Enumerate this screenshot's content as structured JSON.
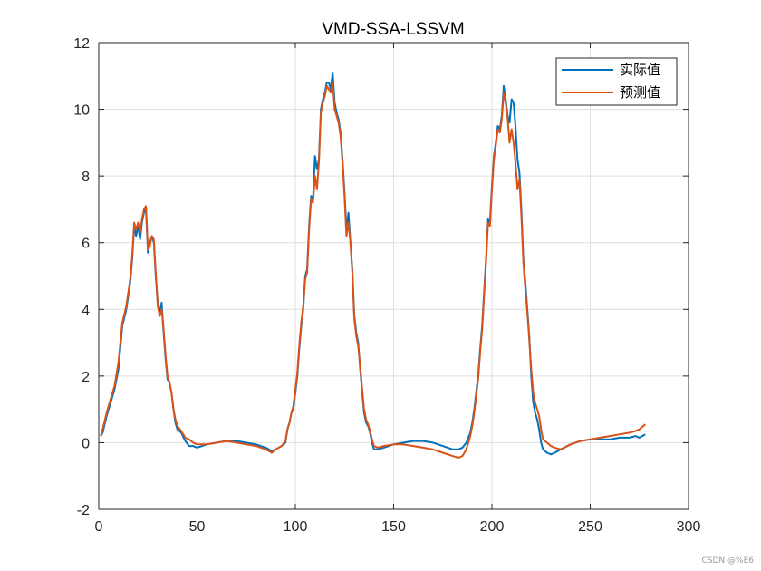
{
  "chart_data": {
    "type": "line",
    "title": "VMD-SSA-LSSVM",
    "xlabel": "",
    "ylabel": "",
    "xlim": [
      0,
      300
    ],
    "ylim": [
      -2,
      12
    ],
    "x_ticks": [
      0,
      50,
      100,
      150,
      200,
      250,
      300
    ],
    "y_ticks": [
      -2,
      0,
      2,
      4,
      6,
      8,
      10,
      12
    ],
    "grid": true,
    "legend_position": "top-right",
    "series": [
      {
        "name": "实际值",
        "color": "#0072BD",
        "points": [
          [
            1,
            0.2
          ],
          [
            2,
            0.3
          ],
          [
            4,
            0.8
          ],
          [
            6,
            1.2
          ],
          [
            8,
            1.6
          ],
          [
            10,
            2.2
          ],
          [
            12,
            3.5
          ],
          [
            14,
            4.0
          ],
          [
            16,
            4.8
          ],
          [
            17,
            5.5
          ],
          [
            18,
            6.5
          ],
          [
            19,
            6.2
          ],
          [
            20,
            6.5
          ],
          [
            21,
            6.1
          ],
          [
            22,
            6.6
          ],
          [
            23,
            6.9
          ],
          [
            24,
            7.0
          ],
          [
            25,
            5.7
          ],
          [
            26,
            6.0
          ],
          [
            27,
            6.2
          ],
          [
            28,
            6.0
          ],
          [
            29,
            5.0
          ],
          [
            30,
            4.2
          ],
          [
            31,
            3.9
          ],
          [
            32,
            4.2
          ],
          [
            33,
            3.3
          ],
          [
            34,
            2.5
          ],
          [
            35,
            1.9
          ],
          [
            36,
            1.8
          ],
          [
            37,
            1.5
          ],
          [
            38,
            1.0
          ],
          [
            39,
            0.6
          ],
          [
            40,
            0.4
          ],
          [
            42,
            0.3
          ],
          [
            44,
            0.05
          ],
          [
            46,
            -0.1
          ],
          [
            48,
            -0.1
          ],
          [
            50,
            -0.15
          ],
          [
            55,
            -0.05
          ],
          [
            60,
            0.0
          ],
          [
            65,
            0.05
          ],
          [
            70,
            0.05
          ],
          [
            75,
            0.0
          ],
          [
            80,
            -0.05
          ],
          [
            85,
            -0.15
          ],
          [
            88,
            -0.25
          ],
          [
            90,
            -0.2
          ],
          [
            93,
            -0.1
          ],
          [
            95,
            0.0
          ],
          [
            96,
            0.4
          ],
          [
            97,
            0.6
          ],
          [
            98,
            0.9
          ],
          [
            99,
            1.0
          ],
          [
            100,
            1.5
          ],
          [
            101,
            2.0
          ],
          [
            102,
            2.8
          ],
          [
            103,
            3.5
          ],
          [
            104,
            4.0
          ],
          [
            105,
            5.0
          ],
          [
            106,
            5.2
          ],
          [
            107,
            6.5
          ],
          [
            108,
            7.4
          ],
          [
            109,
            7.3
          ],
          [
            110,
            8.6
          ],
          [
            111,
            8.2
          ],
          [
            112,
            8.5
          ],
          [
            113,
            10.0
          ],
          [
            114,
            10.3
          ],
          [
            115,
            10.5
          ],
          [
            116,
            10.8
          ],
          [
            117,
            10.8
          ],
          [
            118,
            10.6
          ],
          [
            119,
            11.1
          ],
          [
            120,
            10.2
          ],
          [
            121,
            9.9
          ],
          [
            122,
            9.7
          ],
          [
            123,
            9.3
          ],
          [
            124,
            8.5
          ],
          [
            125,
            7.5
          ],
          [
            126,
            6.4
          ],
          [
            127,
            6.9
          ],
          [
            128,
            6.0
          ],
          [
            129,
            5.2
          ],
          [
            130,
            3.8
          ],
          [
            131,
            3.3
          ],
          [
            132,
            3.0
          ],
          [
            133,
            2.2
          ],
          [
            134,
            1.5
          ],
          [
            135,
            0.9
          ],
          [
            136,
            0.6
          ],
          [
            137,
            0.5
          ],
          [
            138,
            0.3
          ],
          [
            139,
            0.0
          ],
          [
            140,
            -0.2
          ],
          [
            142,
            -0.2
          ],
          [
            145,
            -0.15
          ],
          [
            150,
            -0.05
          ],
          [
            155,
            0.0
          ],
          [
            160,
            0.05
          ],
          [
            165,
            0.05
          ],
          [
            170,
            0.0
          ],
          [
            175,
            -0.1
          ],
          [
            180,
            -0.2
          ],
          [
            183,
            -0.2
          ],
          [
            185,
            -0.15
          ],
          [
            187,
            0.0
          ],
          [
            189,
            0.3
          ],
          [
            190,
            0.6
          ],
          [
            191,
            1.0
          ],
          [
            192,
            1.5
          ],
          [
            193,
            2.0
          ],
          [
            194,
            2.8
          ],
          [
            195,
            3.5
          ],
          [
            196,
            4.5
          ],
          [
            197,
            5.5
          ],
          [
            198,
            6.7
          ],
          [
            199,
            6.6
          ],
          [
            200,
            7.7
          ],
          [
            201,
            8.6
          ],
          [
            202,
            9.0
          ],
          [
            203,
            9.5
          ],
          [
            204,
            9.4
          ],
          [
            205,
            9.8
          ],
          [
            206,
            10.7
          ],
          [
            207,
            10.3
          ],
          [
            208,
            9.8
          ],
          [
            209,
            9.6
          ],
          [
            210,
            10.3
          ],
          [
            211,
            10.2
          ],
          [
            212,
            9.5
          ],
          [
            213,
            8.5
          ],
          [
            214,
            8.1
          ],
          [
            215,
            7.0
          ],
          [
            216,
            5.5
          ],
          [
            217,
            4.8
          ],
          [
            218,
            4.0
          ],
          [
            219,
            3.2
          ],
          [
            220,
            2.0
          ],
          [
            221,
            1.2
          ],
          [
            222,
            0.9
          ],
          [
            223,
            0.7
          ],
          [
            224,
            0.4
          ],
          [
            225,
            0.0
          ],
          [
            226,
            -0.2
          ],
          [
            228,
            -0.3
          ],
          [
            230,
            -0.35
          ],
          [
            232,
            -0.3
          ],
          [
            235,
            -0.2
          ],
          [
            240,
            -0.05
          ],
          [
            245,
            0.05
          ],
          [
            250,
            0.1
          ],
          [
            255,
            0.1
          ],
          [
            260,
            0.1
          ],
          [
            265,
            0.15
          ],
          [
            270,
            0.15
          ],
          [
            273,
            0.2
          ],
          [
            275,
            0.15
          ],
          [
            278,
            0.25
          ]
        ]
      },
      {
        "name": "预测值",
        "color": "#D95319",
        "points": [
          [
            1,
            0.2
          ],
          [
            2,
            0.4
          ],
          [
            4,
            0.9
          ],
          [
            6,
            1.3
          ],
          [
            8,
            1.7
          ],
          [
            10,
            2.4
          ],
          [
            12,
            3.6
          ],
          [
            14,
            4.1
          ],
          [
            16,
            4.9
          ],
          [
            17,
            5.6
          ],
          [
            18,
            6.6
          ],
          [
            19,
            6.4
          ],
          [
            20,
            6.6
          ],
          [
            21,
            6.3
          ],
          [
            22,
            6.7
          ],
          [
            23,
            7.0
          ],
          [
            24,
            7.1
          ],
          [
            25,
            5.8
          ],
          [
            26,
            5.9
          ],
          [
            27,
            6.2
          ],
          [
            28,
            6.1
          ],
          [
            29,
            5.1
          ],
          [
            30,
            4.1
          ],
          [
            31,
            3.8
          ],
          [
            32,
            4.0
          ],
          [
            33,
            3.4
          ],
          [
            34,
            2.6
          ],
          [
            35,
            2.0
          ],
          [
            36,
            1.8
          ],
          [
            37,
            1.5
          ],
          [
            38,
            1.0
          ],
          [
            39,
            0.7
          ],
          [
            40,
            0.5
          ],
          [
            42,
            0.35
          ],
          [
            44,
            0.15
          ],
          [
            46,
            0.1
          ],
          [
            48,
            0.0
          ],
          [
            50,
            -0.05
          ],
          [
            55,
            -0.05
          ],
          [
            60,
            0.0
          ],
          [
            65,
            0.05
          ],
          [
            70,
            0.0
          ],
          [
            75,
            -0.05
          ],
          [
            80,
            -0.1
          ],
          [
            85,
            -0.2
          ],
          [
            88,
            -0.3
          ],
          [
            90,
            -0.2
          ],
          [
            93,
            -0.1
          ],
          [
            95,
            0.05
          ],
          [
            96,
            0.4
          ],
          [
            97,
            0.6
          ],
          [
            98,
            0.9
          ],
          [
            99,
            1.1
          ],
          [
            100,
            1.6
          ],
          [
            101,
            2.1
          ],
          [
            102,
            2.9
          ],
          [
            103,
            3.6
          ],
          [
            104,
            4.1
          ],
          [
            105,
            4.9
          ],
          [
            106,
            5.1
          ],
          [
            107,
            6.4
          ],
          [
            108,
            7.3
          ],
          [
            109,
            7.2
          ],
          [
            110,
            8.0
          ],
          [
            111,
            7.6
          ],
          [
            112,
            8.4
          ],
          [
            113,
            9.9
          ],
          [
            114,
            10.2
          ],
          [
            115,
            10.4
          ],
          [
            116,
            10.7
          ],
          [
            117,
            10.6
          ],
          [
            118,
            10.5
          ],
          [
            119,
            10.8
          ],
          [
            120,
            10.0
          ],
          [
            121,
            9.8
          ],
          [
            122,
            9.6
          ],
          [
            123,
            9.2
          ],
          [
            124,
            8.4
          ],
          [
            125,
            7.4
          ],
          [
            126,
            6.2
          ],
          [
            127,
            6.6
          ],
          [
            128,
            6.0
          ],
          [
            129,
            5.1
          ],
          [
            130,
            3.7
          ],
          [
            131,
            3.2
          ],
          [
            132,
            2.9
          ],
          [
            133,
            2.3
          ],
          [
            134,
            1.6
          ],
          [
            135,
            1.0
          ],
          [
            136,
            0.7
          ],
          [
            137,
            0.55
          ],
          [
            138,
            0.35
          ],
          [
            139,
            0.1
          ],
          [
            140,
            -0.1
          ],
          [
            142,
            -0.15
          ],
          [
            145,
            -0.1
          ],
          [
            150,
            -0.05
          ],
          [
            155,
            -0.05
          ],
          [
            160,
            -0.1
          ],
          [
            165,
            -0.15
          ],
          [
            170,
            -0.2
          ],
          [
            175,
            -0.3
          ],
          [
            180,
            -0.4
          ],
          [
            183,
            -0.45
          ],
          [
            185,
            -0.4
          ],
          [
            187,
            -0.2
          ],
          [
            189,
            0.2
          ],
          [
            190,
            0.5
          ],
          [
            191,
            0.9
          ],
          [
            192,
            1.4
          ],
          [
            193,
            1.9
          ],
          [
            194,
            2.7
          ],
          [
            195,
            3.4
          ],
          [
            196,
            4.4
          ],
          [
            197,
            5.4
          ],
          [
            198,
            6.6
          ],
          [
            199,
            6.5
          ],
          [
            200,
            7.6
          ],
          [
            201,
            8.5
          ],
          [
            202,
            8.9
          ],
          [
            203,
            9.4
          ],
          [
            204,
            9.3
          ],
          [
            205,
            9.7
          ],
          [
            206,
            10.5
          ],
          [
            207,
            10.2
          ],
          [
            208,
            9.7
          ],
          [
            209,
            9.0
          ],
          [
            210,
            9.4
          ],
          [
            211,
            9.0
          ],
          [
            212,
            8.4
          ],
          [
            213,
            7.6
          ],
          [
            214,
            7.9
          ],
          [
            215,
            6.8
          ],
          [
            216,
            5.4
          ],
          [
            217,
            4.6
          ],
          [
            218,
            3.9
          ],
          [
            219,
            3.1
          ],
          [
            220,
            2.2
          ],
          [
            221,
            1.5
          ],
          [
            222,
            1.2
          ],
          [
            223,
            1.0
          ],
          [
            224,
            0.8
          ],
          [
            225,
            0.4
          ],
          [
            226,
            0.1
          ],
          [
            228,
            0.0
          ],
          [
            230,
            -0.1
          ],
          [
            232,
            -0.15
          ],
          [
            235,
            -0.2
          ],
          [
            240,
            -0.05
          ],
          [
            245,
            0.05
          ],
          [
            250,
            0.1
          ],
          [
            255,
            0.15
          ],
          [
            260,
            0.2
          ],
          [
            265,
            0.25
          ],
          [
            270,
            0.3
          ],
          [
            273,
            0.35
          ],
          [
            275,
            0.4
          ],
          [
            278,
            0.55
          ]
        ]
      }
    ]
  },
  "watermark": "CSDN @%E6"
}
